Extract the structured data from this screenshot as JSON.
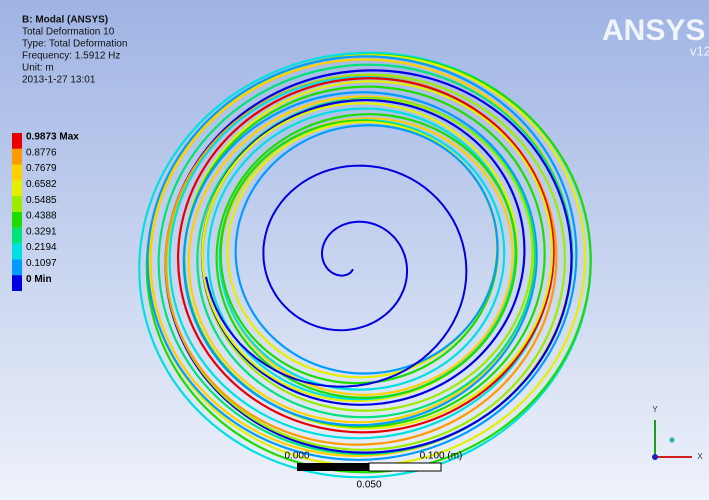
{
  "header": {
    "lines": [
      "B: Modal (ANSYS)",
      "Total Deformation 10",
      "Type: Total Deformation",
      "Frequency: 1.5912 Hz",
      "Unit: m",
      "2013-1-27 13:01"
    ]
  },
  "legend": {
    "items": [
      {
        "label": "0.9873 Max",
        "color": "#e80000"
      },
      {
        "label": "0.8776",
        "color": "#ff9a00"
      },
      {
        "label": "0.7679",
        "color": "#ffd000"
      },
      {
        "label": "0.6582",
        "color": "#e4f000"
      },
      {
        "label": "0.5485",
        "color": "#9cec00"
      },
      {
        "label": "0.4388",
        "color": "#1edc00"
      },
      {
        "label": "0.3291",
        "color": "#00e27a"
      },
      {
        "label": "0.2194",
        "color": "#00e0e0"
      },
      {
        "label": "0.1097",
        "color": "#009cff"
      },
      {
        "label": "0 Min",
        "color": "#0000e0"
      }
    ]
  },
  "logo": {
    "brand": "ANSYS",
    "version": "v12"
  },
  "scale_bar": {
    "start": "0.000",
    "end": "0.100 (m)",
    "middle": "0.050"
  },
  "triad": {
    "y": "Y",
    "x": "X"
  }
}
